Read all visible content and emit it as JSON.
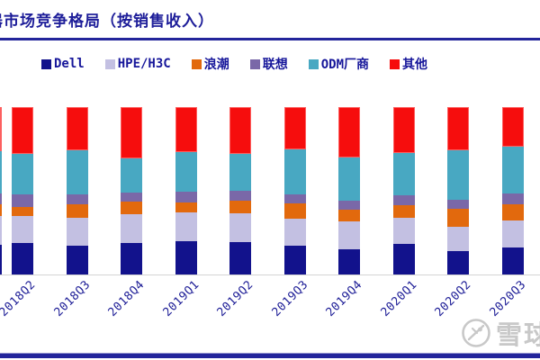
{
  "header": {
    "title_clipped_prefix": "器",
    "title": "市场竞争格局（按销售收入）"
  },
  "colors": {
    "accent_rule": "#23259b",
    "title_text": "#1d1d99",
    "axis_line": "#d4d4d4",
    "watermark_gray": "#c8c8c8"
  },
  "chart_data": {
    "type": "bar",
    "stacked": true,
    "percent_stacked": true,
    "title": "市场竞争格局（按销售收入）",
    "xlabel": "",
    "ylabel": "",
    "ylim": [
      0,
      100
    ],
    "grid": false,
    "legend_position": "top",
    "categories": [
      "2018Q2",
      "2018Q3",
      "2018Q4",
      "2019Q1",
      "2019Q2",
      "2019Q3",
      "2019Q4",
      "2020Q1",
      "2020Q2",
      "2020Q3"
    ],
    "series": [
      {
        "name": "Dell",
        "color": "#12128c",
        "values": [
          18.8,
          17.0,
          18.8,
          20.1,
          19.4,
          17.0,
          15.2,
          18.4,
          13.8,
          16.1
        ]
      },
      {
        "name": "HPE/H3C",
        "color": "#c3c0e2",
        "values": [
          16.1,
          17.0,
          17.4,
          17.2,
          17.4,
          16.5,
          16.7,
          15.1,
          14.5,
          16.1
        ]
      },
      {
        "name": "浪潮",
        "color": "#e2690d",
        "values": [
          5.4,
          8.1,
          7.2,
          5.8,
          7.2,
          9.1,
          6.7,
          7.7,
          10.8,
          9.8
        ]
      },
      {
        "name": "联想",
        "color": "#7a68a8",
        "values": [
          7.7,
          5.9,
          5.4,
          6.3,
          5.9,
          5.4,
          5.4,
          6.2,
          5.4,
          6.3
        ]
      },
      {
        "name": "ODM厂商",
        "color": "#48a8c2",
        "values": [
          24.0,
          26.0,
          20.6,
          23.7,
          22.2,
          26.7,
          26.0,
          25.1,
          29.6,
          28.1
        ]
      },
      {
        "name": "其他",
        "color": "#f60d0d",
        "values": [
          28.0,
          26.0,
          30.6,
          27.0,
          28.0,
          25.3,
          30.1,
          27.4,
          26.0,
          23.5
        ]
      }
    ],
    "edge_partial_bar_values": [
      17.7,
      17.2,
      7.0,
      6.5,
      25.3,
      26.3
    ]
  },
  "watermark": {
    "text": "雪球",
    "logo": "xueqiu-circle-logo"
  }
}
